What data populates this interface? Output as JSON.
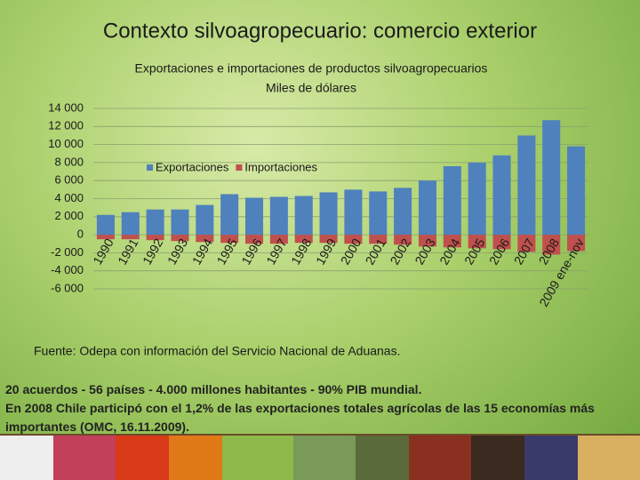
{
  "slide_title": "Contexto silvoagropecuario: comercio exterior",
  "chart_data": {
    "type": "bar",
    "title": "Exportaciones e importaciones de productos silvoagropecuarios",
    "subtitle": "Miles de dólares",
    "categories": [
      "1990",
      "1991",
      "1992",
      "1993",
      "1994",
      "1995",
      "1996",
      "1997",
      "1998",
      "1999",
      "2000",
      "2001",
      "2002",
      "2003",
      "2004",
      "2005",
      "2006",
      "2007",
      "2008",
      "2009 ene-nov"
    ],
    "series": [
      {
        "name": "Exportaciones",
        "color": "#4f81bd",
        "values": [
          2200,
          2500,
          2800,
          2800,
          3300,
          4500,
          4100,
          4200,
          4300,
          4700,
          5000,
          4800,
          5200,
          6000,
          7600,
          8000,
          8800,
          11000,
          12700,
          9800
        ]
      },
      {
        "name": "Importaciones",
        "color": "#c0504d",
        "values": [
          -500,
          -500,
          -600,
          -700,
          -800,
          -900,
          -1000,
          -1000,
          -900,
          -900,
          -1000,
          -1000,
          -1100,
          -1300,
          -1400,
          -1500,
          -1600,
          -1900,
          -2200,
          -1800
        ]
      }
    ],
    "ylim": [
      -6000,
      14000
    ],
    "yticks": [
      {
        "value": -6000,
        "label": "-6 000"
      },
      {
        "value": -4000,
        "label": "-4 000"
      },
      {
        "value": -2000,
        "label": "-2 000"
      },
      0,
      {
        "value": 2000,
        "label": "2 000"
      },
      {
        "value": 4000,
        "label": "4 000"
      },
      {
        "value": 6000,
        "label": "6 000"
      },
      {
        "value": 8000,
        "label": "8 000"
      },
      {
        "value": 10000,
        "label": "10 000"
      },
      {
        "value": 12000,
        "label": "12 000"
      },
      {
        "value": 14000,
        "label": "14 000"
      }
    ],
    "grid": true,
    "legend": "top-left"
  },
  "source": "Fuente: Odepa con información del Servicio Nacional de Aduanas.",
  "notes": [
    "20 acuerdos  - 56 países - 4.000 millones habitantes - 90% PIB mundial.",
    "En 2008 Chile participó con el 1,2% de las exportaciones totales agrícolas de las 15 economías más importantes (OMC, 16.11.2009)."
  ]
}
